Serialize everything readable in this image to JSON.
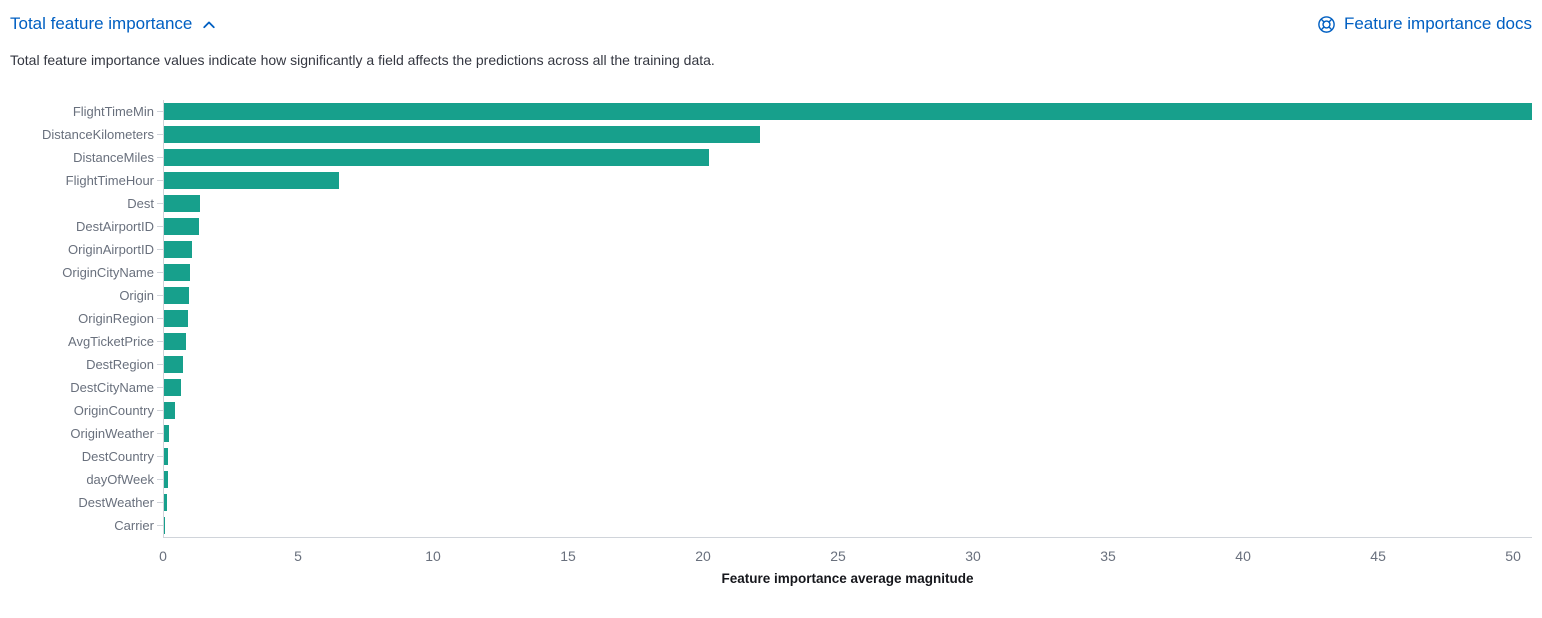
{
  "header": {
    "title": "Total feature importance",
    "collapse_state": "expanded",
    "docs_link_label": "Feature importance docs"
  },
  "description": "Total feature importance values indicate how significantly a field affects the predictions across all the training data.",
  "colors": {
    "link_blue": "#005fc2",
    "bar_teal": "#17a08c",
    "axis_line": "#d0d4da",
    "axis_text": "#69707d"
  },
  "chart_data": {
    "type": "bar",
    "orientation": "horizontal",
    "title": "",
    "xlabel": "Feature importance average magnitude",
    "ylabel": "",
    "xlim": [
      0,
      50.7
    ],
    "xticks": [
      0,
      5,
      10,
      15,
      20,
      25,
      30,
      35,
      40,
      45,
      50
    ],
    "grid": false,
    "legend": "none",
    "categories": [
      "FlightTimeMin",
      "DistanceKilometers",
      "DistanceMiles",
      "FlightTimeHour",
      "Dest",
      "DestAirportID",
      "OriginAirportID",
      "OriginCityName",
      "Origin",
      "OriginRegion",
      "AvgTicketPrice",
      "DestRegion",
      "DestCityName",
      "OriginCountry",
      "OriginWeather",
      "DestCountry",
      "dayOfWeek",
      "DestWeather",
      "Carrier"
    ],
    "values": [
      50.7,
      22.1,
      20.2,
      6.5,
      1.35,
      1.3,
      1.05,
      0.97,
      0.92,
      0.88,
      0.83,
      0.7,
      0.64,
      0.42,
      0.18,
      0.16,
      0.13,
      0.1,
      0.04
    ]
  }
}
